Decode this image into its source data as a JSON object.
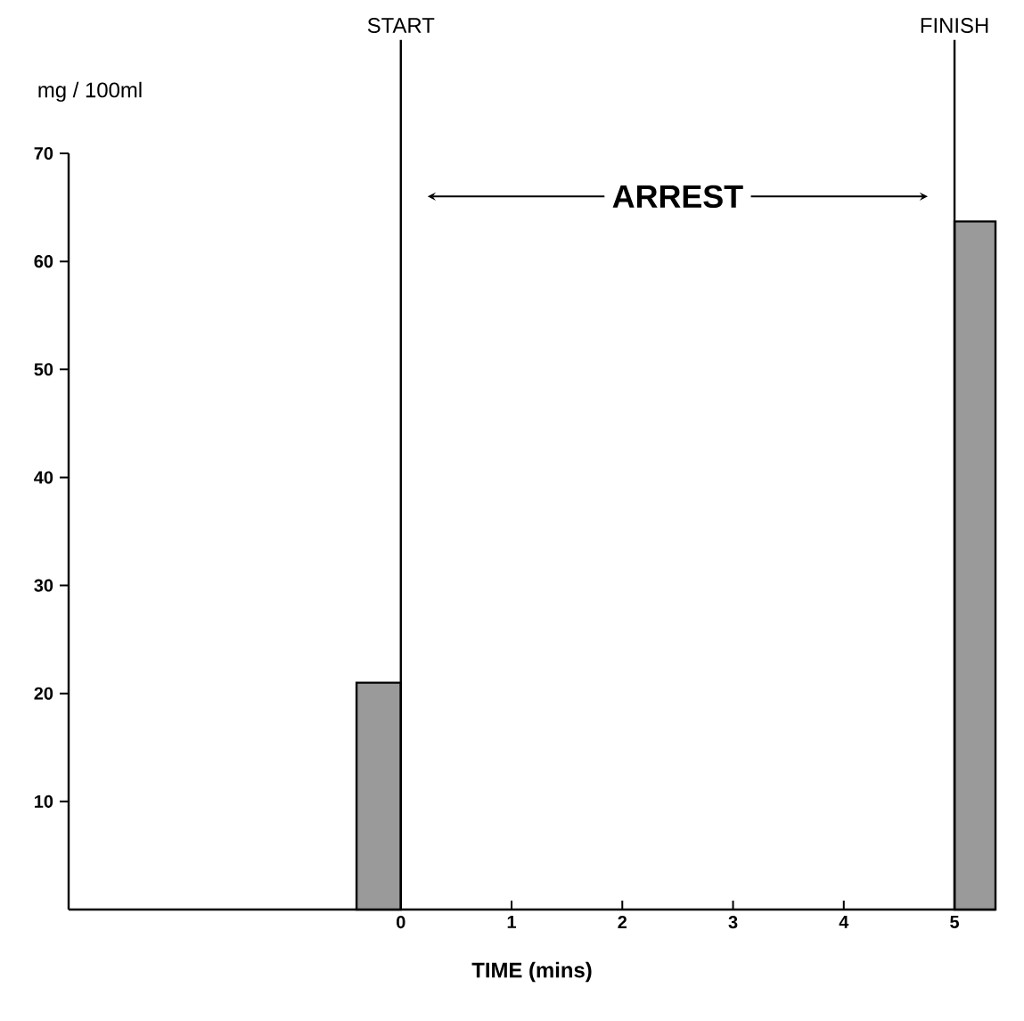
{
  "chart_data": {
    "type": "histogram",
    "xlabel": "TIME (mins)",
    "ylabel": "mg / 100ml",
    "bins": [
      -0.4,
      0,
      5,
      5.37
    ],
    "values": [
      21,
      null,
      63.7
    ],
    "color": "#9a9a9a",
    "xlim": [
      -3,
      5.37
    ],
    "xticks": [
      0,
      1,
      2,
      3,
      4,
      5
    ],
    "ylim": [
      0,
      70
    ],
    "yticks": [
      10,
      20,
      30,
      40,
      50,
      60,
      70
    ],
    "ref_lines": [
      {
        "axis": "x",
        "value": 0,
        "label": "START"
      },
      {
        "axis": "x",
        "value": 5,
        "label": "FINISH"
      }
    ],
    "annotations": [
      "ARREST"
    ]
  }
}
